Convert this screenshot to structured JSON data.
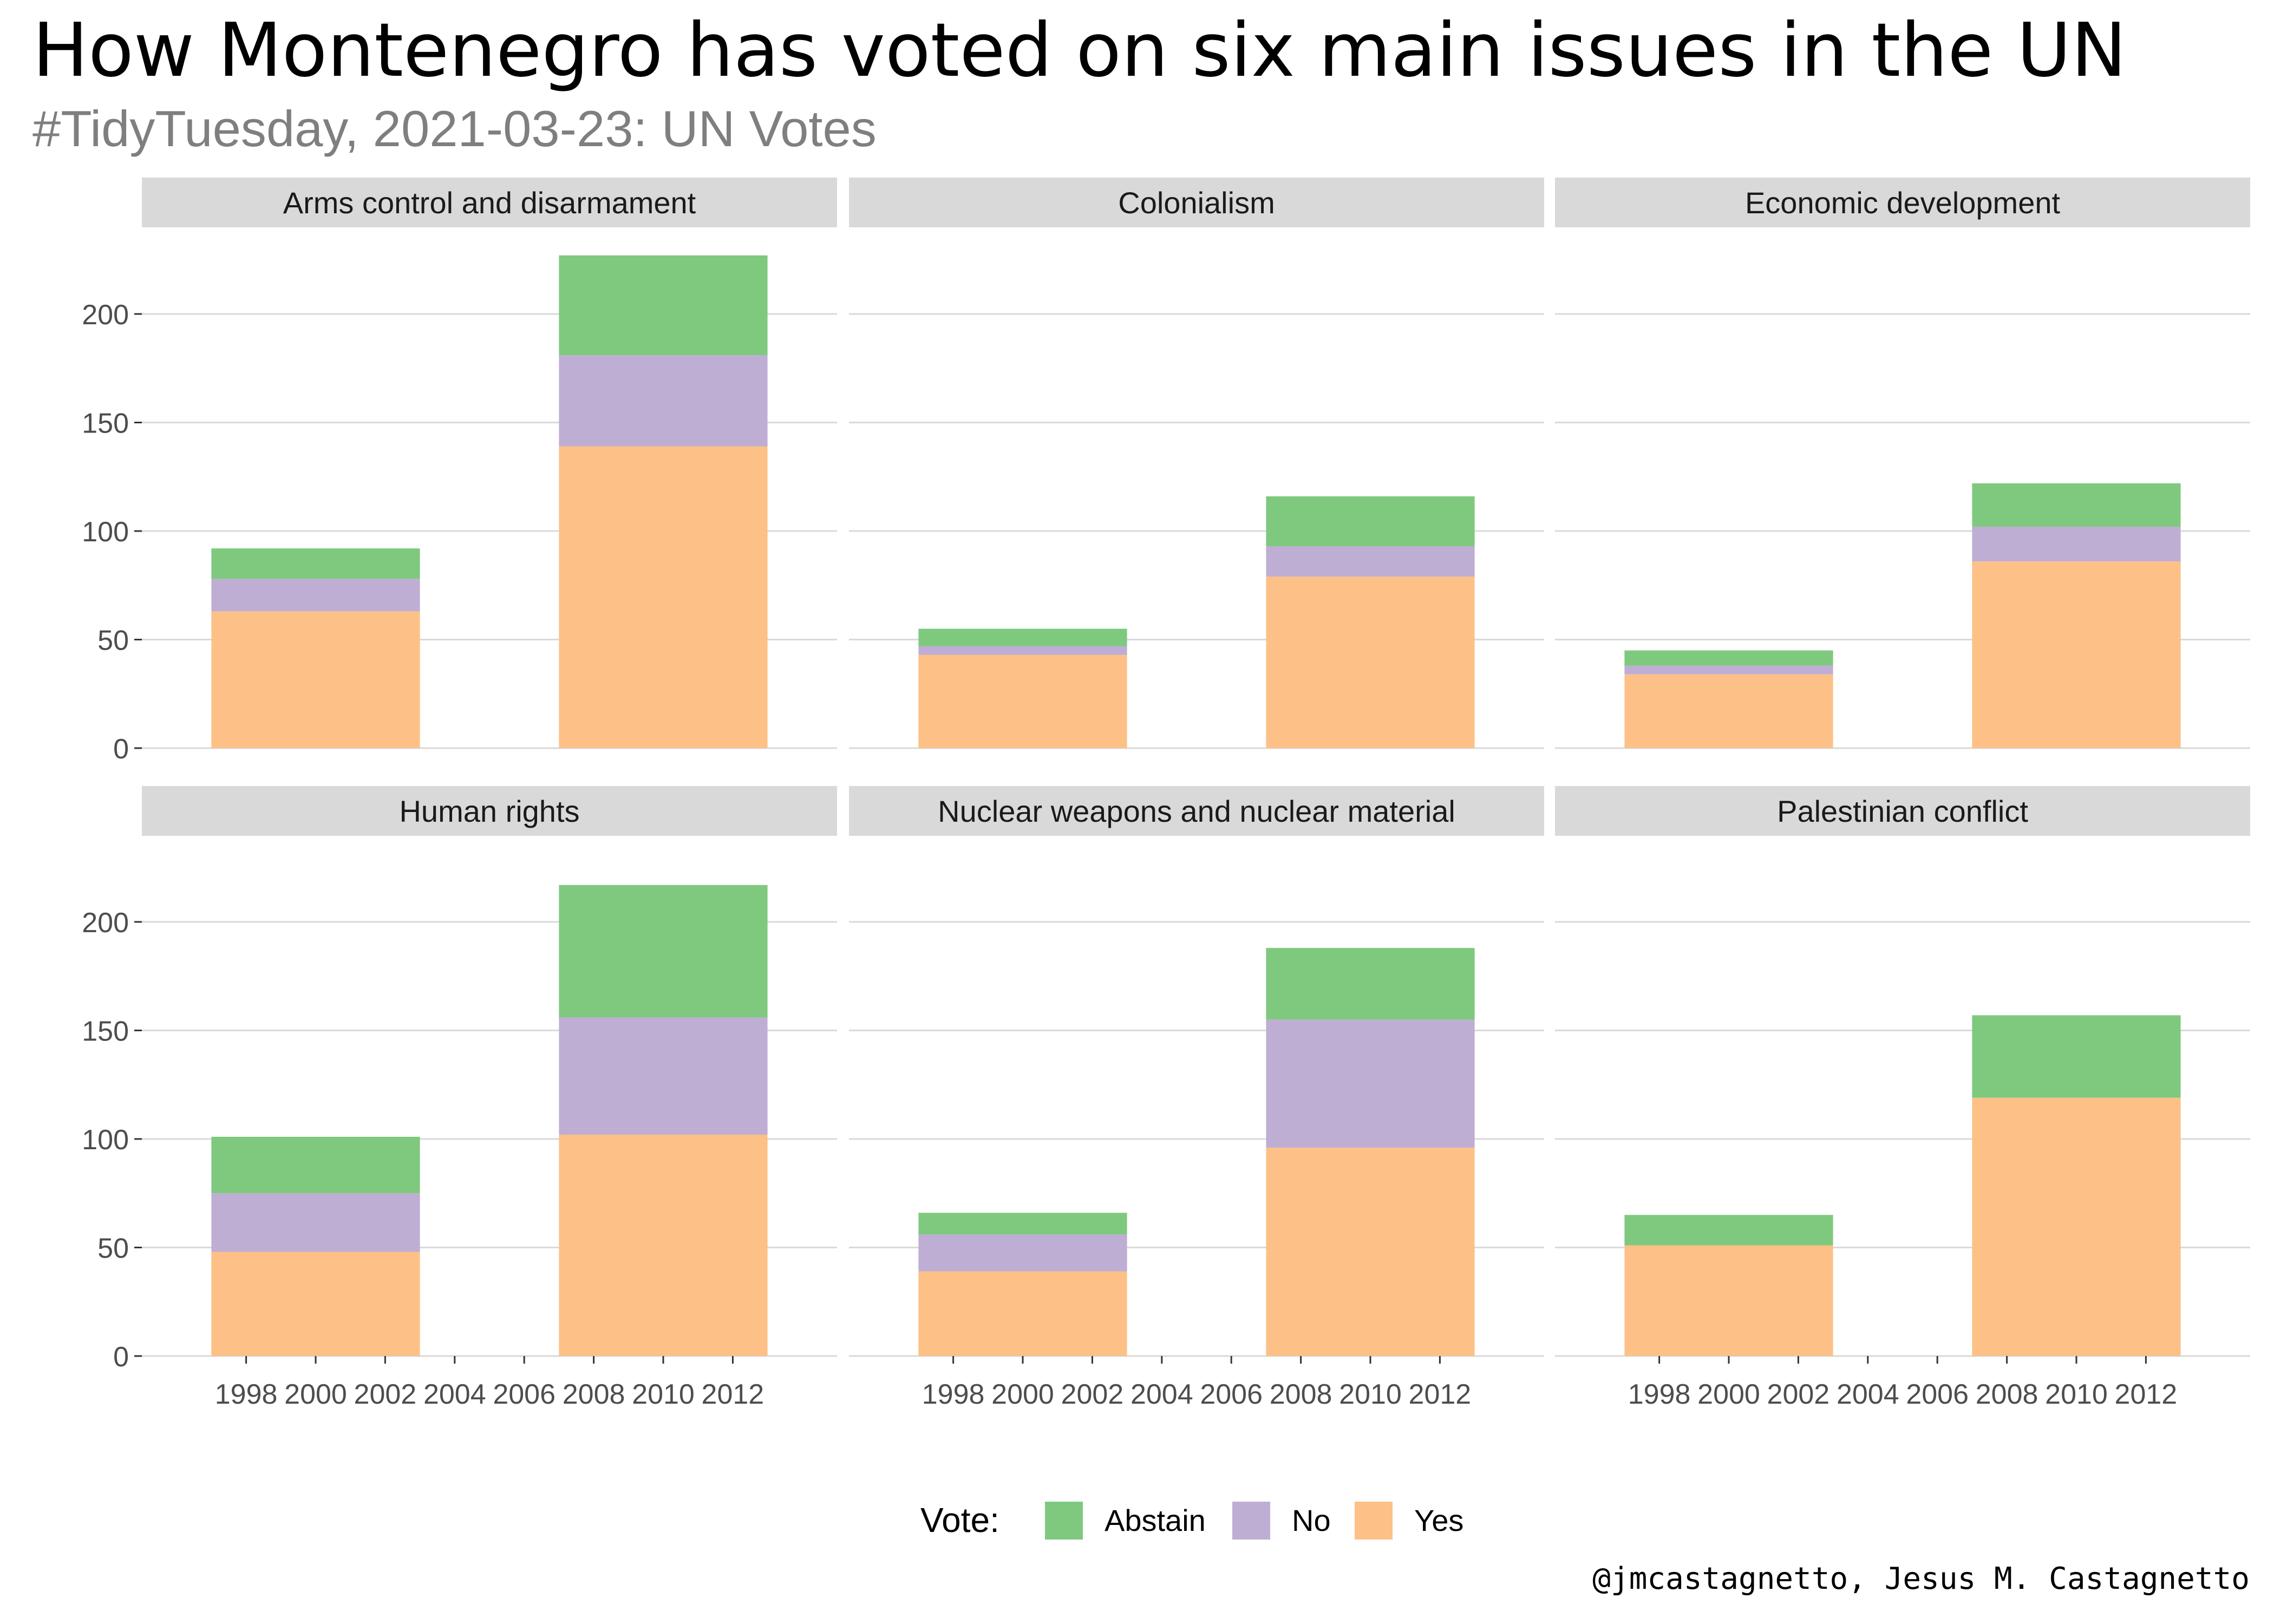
{
  "title": "How Montenegro has voted on six main issues in the UN",
  "subtitle": "#TidyTuesday, 2021-03-23: UN Votes",
  "caption": "@jmcastagnetto, Jesus M. Castagnetto",
  "colors": {
    "Abstain": "#7fc97f",
    "No": "#beaed4",
    "Yes": "#fdc086",
    "strip": "#d9d9d9",
    "grid": "#d9d9d9"
  },
  "chart_data": {
    "type": "bar",
    "stacked": true,
    "facets": 6,
    "x_range": [
      1995,
      2015
    ],
    "x_ticks": [
      "1998",
      "2000",
      "2002",
      "2004",
      "2006",
      "2008",
      "2010",
      "2012"
    ],
    "x_tick_values": [
      1998,
      2000,
      2002,
      2004,
      2006,
      2008,
      2010,
      2012
    ],
    "y_range": [
      0,
      228
    ],
    "y_ticks": [
      "0",
      "50",
      "100",
      "150",
      "200"
    ],
    "y_tick_values": [
      0,
      50,
      100,
      150,
      200
    ],
    "bar_x": [
      2000,
      2010
    ],
    "bar_span_years": 6,
    "grid": true,
    "legend": {
      "position": "bottom",
      "title": "Vote:",
      "items": [
        "Abstain",
        "No",
        "Yes"
      ]
    },
    "stack_order": [
      "Yes",
      "No",
      "Abstain"
    ],
    "panels": [
      {
        "name": "Arms control and disarmament",
        "bars": [
          {
            "Yes": 63,
            "No": 15,
            "Abstain": 14
          },
          {
            "Yes": 139,
            "No": 42,
            "Abstain": 46
          }
        ]
      },
      {
        "name": "Colonialism",
        "bars": [
          {
            "Yes": 43,
            "No": 4,
            "Abstain": 8
          },
          {
            "Yes": 79,
            "No": 14,
            "Abstain": 23
          }
        ]
      },
      {
        "name": "Economic development",
        "bars": [
          {
            "Yes": 34,
            "No": 4,
            "Abstain": 7
          },
          {
            "Yes": 86,
            "No": 16,
            "Abstain": 20
          }
        ]
      },
      {
        "name": "Human rights",
        "bars": [
          {
            "Yes": 48,
            "No": 27,
            "Abstain": 26
          },
          {
            "Yes": 102,
            "No": 54,
            "Abstain": 61
          }
        ]
      },
      {
        "name": "Nuclear weapons and nuclear material",
        "bars": [
          {
            "Yes": 39,
            "No": 17,
            "Abstain": 10
          },
          {
            "Yes": 96,
            "No": 59,
            "Abstain": 33
          }
        ]
      },
      {
        "name": "Palestinian conflict",
        "bars": [
          {
            "Yes": 51,
            "No": 0,
            "Abstain": 14
          },
          {
            "Yes": 119,
            "No": 0,
            "Abstain": 38
          }
        ]
      }
    ]
  }
}
